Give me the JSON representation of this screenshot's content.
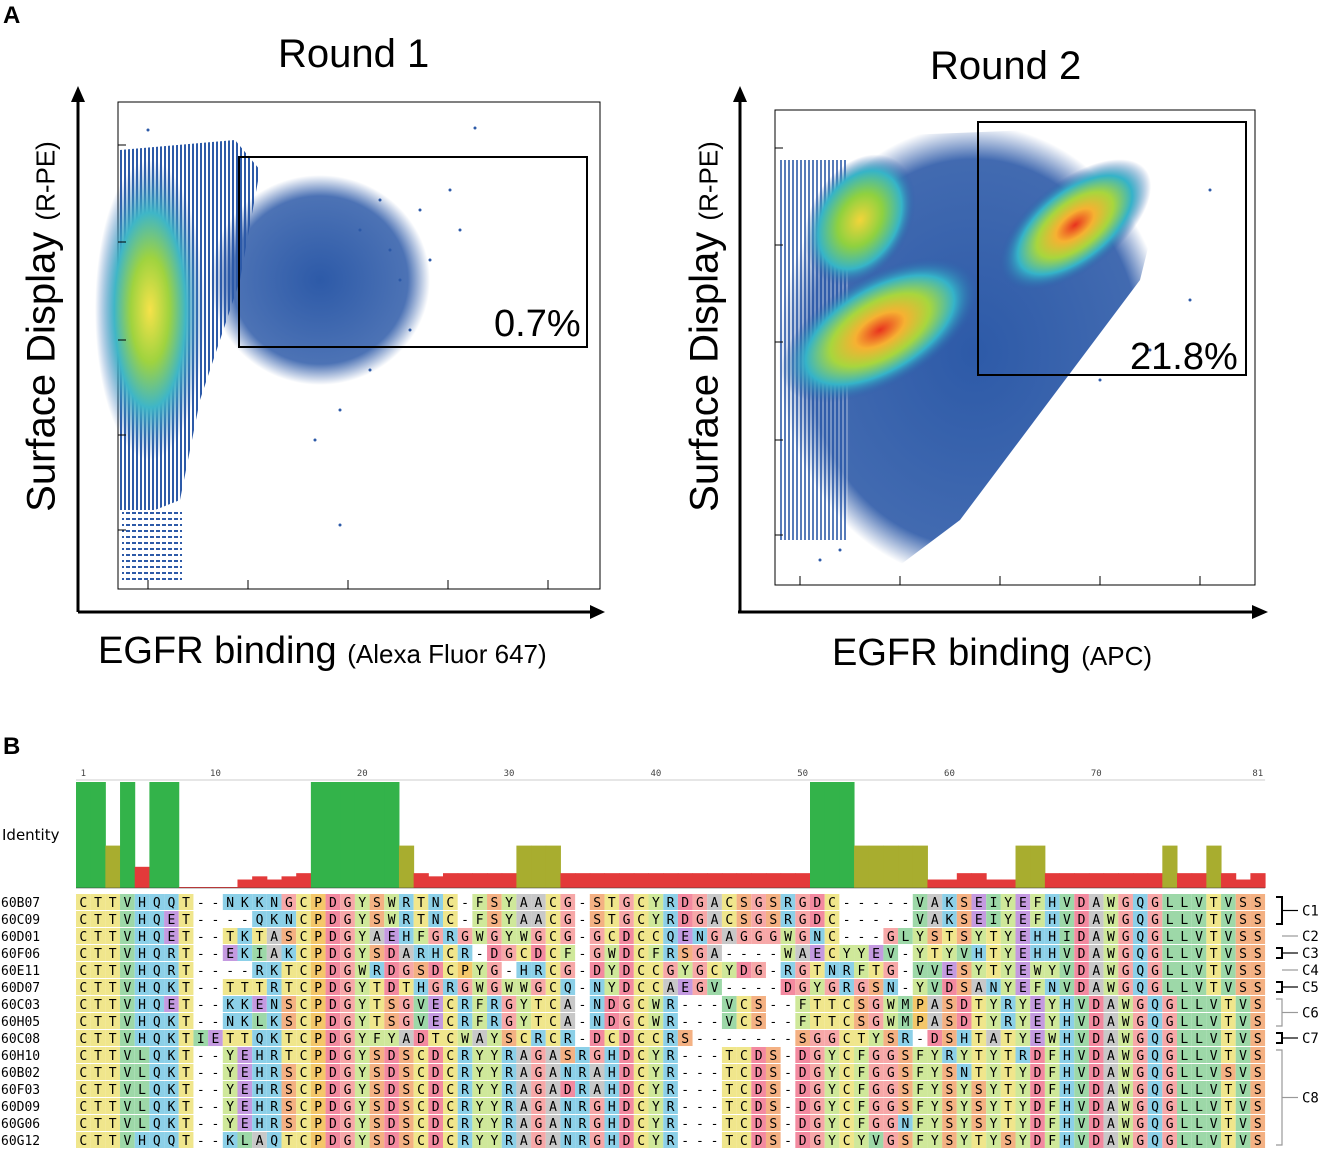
{
  "panelA": {
    "letter": "A",
    "plots": [
      {
        "title": "Round 1",
        "ylabel_main": "Surface Display",
        "ylabel_sub": "(R-PE)",
        "xlabel_main": "EGFR binding",
        "xlabel_sub": "(Alexa Fluor 647)",
        "gate_percent": "0.7%"
      },
      {
        "title": "Round 2",
        "ylabel_main": "Surface Display",
        "ylabel_sub": "(R-PE)",
        "xlabel_main": "EGFR binding",
        "xlabel_sub": "(APC)",
        "gate_percent": "21.8%"
      }
    ]
  },
  "panelB": {
    "letter": "B",
    "identity_label": "Identity",
    "ruler_ticks": [
      "1",
      "10",
      "20",
      "30",
      "40",
      "50",
      "60",
      "70",
      "81"
    ],
    "identity": [
      100,
      100,
      40,
      100,
      20,
      100,
      100,
      0,
      0,
      0,
      0,
      8,
      11,
      8,
      11,
      14,
      100,
      100,
      100,
      100,
      100,
      100,
      40,
      14,
      11,
      14,
      14,
      14,
      14,
      14,
      40,
      40,
      40,
      14,
      14,
      14,
      14,
      14,
      14,
      14,
      14,
      14,
      14,
      14,
      14,
      14,
      14,
      14,
      14,
      14,
      100,
      100,
      100,
      40,
      40,
      40,
      40,
      40,
      8,
      8,
      14,
      14,
      8,
      8,
      40,
      40,
      14,
      14,
      14,
      14,
      14,
      14,
      14,
      14,
      40,
      14,
      14,
      40,
      14,
      8,
      14
    ],
    "sequences": [
      {
        "name": "60B07",
        "seq": "CTTVHQQT--NKKNGCPDGYSWRTNC-FSYAACG-STGCYRDGACSGSRGDC-----VAKSEIYEFHVDAWGQGLLVTVSS"
      },
      {
        "name": "60C09",
        "seq": "CTTVHQET----QKNCPDGYSWRTNC-FSYAACG-STGCYRDGACSGSRGDC-----VAKSEIYEFHVDAWGQGLLVTVSS"
      },
      {
        "name": "60D01",
        "seq": "CTTVHQET--TKTASCPDGYAEHFGRGWGYWGCG-GCDCCQENGAGGGWGNC---GLYSTSYTYEHHIDAWGQGLLVTVSS"
      },
      {
        "name": "60F06",
        "seq": "CTTVHQRT--EKIAKCPDGYSDARHCR-DGCDCF-GWDCFRSGA----WAECYYEV-YTYVHTYEHHVDAWGQGLLVTVSS"
      },
      {
        "name": "60E11",
        "seq": "CTTVHQRT----RKTCPDGWRDGSDCPYG-HRCG-DYDCCGYGCYDG-RGTNRFTG-VVESYTYEWYVDAWGQGLLVTVSS"
      },
      {
        "name": "60D07",
        "seq": "CTTVHQKT--TTTRTCPDGYTDTHGRGWGWWGCQ-NYDCCAEGV----DGYGRGSN-YVDSANYEFNVDAWGQGLLVTVSS"
      },
      {
        "name": "60C03",
        "seq": "CTTVHQET--KKENSCPDGYTSGVECRFRGYTCA-NDGCWR---VCS--FTTCSGWMPASDTYRYEYHVDAWGQGLLVTVSS"
      },
      {
        "name": "60H05",
        "seq": "CTTVHQKT--NKLKSCPDGYTSGVECRFRGYTCA-NDGCWR---VCS--FTTCSGWMPASDTYRYEYHVDAWGQGLLVTVSS"
      },
      {
        "name": "60C08",
        "seq": "CTTVHQKTIETTQKTCPDGYFYADTCWAYSCRCR-DCDCCRS-------SGGCTYSR-DSHTATYEWHVDAWGQGLLVTVSS"
      },
      {
        "name": "60H10",
        "seq": "CTTVLQKT--YEHRTCPDGYSDSCDCRYYRAGASRGHDCYR---TCDS-DGYCFGGSFYRYTYTRDFHVDAWGQGLLVTVSS"
      },
      {
        "name": "60B02",
        "seq": "CTTVLQKT--YEHRSCPDGYSDSCDCRYYRAGANRAHDCYR---TCDS-DGYCFGGSFYSNTYTYDFHVDAWGQGLLVSVSS"
      },
      {
        "name": "60F03",
        "seq": "CTTVLQKT--YEHRSCPDGYSDSCDCRYYRAGADRAHDCYR---TCDS-DGYCFGGSFYSYSYTYDFHVDAWGQGLLVTVSS"
      },
      {
        "name": "60D09",
        "seq": "CTTVLQKT--YEHRSCPDGYSDSCDCRYYRAGANRGHDCYR---TCDS-DGYCFGGSFYSYSYTYDFHVDAWGQGLLVTVSS"
      },
      {
        "name": "60G06",
        "seq": "CTTVLQKT--YEHRSCPDGYSDSCDCRYYRAGANRGHDCYR---TCDS-DGYCFGGNFYSYSYTYDFHVDAWGQGLLVTVSS"
      },
      {
        "name": "60G12",
        "seq": "CTTVHQQT--KLAQTCPDGYSDSCDCRYYRAGANRGHDCYR---TCDS-DGYCYVGSFYSYTYSYDFHVDAWGQGLLVTVSS"
      }
    ],
    "clusters": [
      {
        "label": "C1",
        "rows": [
          0,
          1
        ],
        "bracket": "black"
      },
      {
        "label": "C2",
        "rows": [
          2
        ],
        "bracket": "gray"
      },
      {
        "label": "C3",
        "rows": [
          3
        ],
        "bracket": "black"
      },
      {
        "label": "C4",
        "rows": [
          4
        ],
        "bracket": "gray"
      },
      {
        "label": "C5",
        "rows": [
          5
        ],
        "bracket": "black"
      },
      {
        "label": "C6",
        "rows": [
          6,
          7
        ],
        "bracket": "gray"
      },
      {
        "label": "C7",
        "rows": [
          8
        ],
        "bracket": "black"
      },
      {
        "label": "C8",
        "rows": [
          9,
          10,
          11,
          12,
          13,
          14
        ],
        "bracket": "gray"
      }
    ],
    "residue_colors": {
      "C": "#f0e68c",
      "T": "#f0e68c",
      "S": "#f4b183",
      "V": "#9dd8a8",
      "L": "#9dd8a8",
      "I": "#9dd8a8",
      "A": "#c8c8c8",
      "G": "#f7a8a8",
      "Q": "#8cd0e8",
      "N": "#8cd0e8",
      "H": "#8cd0e8",
      "K": "#8cd0e8",
      "R": "#8cd0e8",
      "E": "#c49ae0",
      "D": "#f38aa0",
      "P": "#f4c76a",
      "Y": "#cfe89a",
      "W": "#cfe89a",
      "F": "#cfe89a",
      "M": "#9dd8a8"
    },
    "identity_colors": {
      "high": "#33b34a",
      "mid": "#a8ad2f",
      "low": "#e33a3a"
    }
  }
}
